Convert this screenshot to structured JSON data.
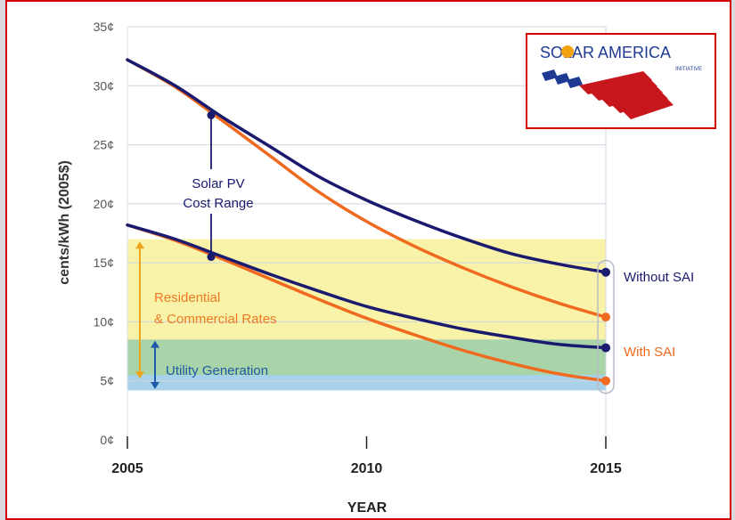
{
  "chart_data": {
    "type": "line",
    "xlabel": "YEAR",
    "ylabel": "cents/kWh (2005$)",
    "xlim": [
      2005,
      2015
    ],
    "ylim": [
      0,
      35
    ],
    "x_ticks": [
      "2005",
      "2010",
      "2015"
    ],
    "y_ticks": [
      "0¢",
      "5¢",
      "10¢",
      "15¢",
      "20¢",
      "25¢",
      "30¢",
      "35¢"
    ],
    "grid": true,
    "series": [
      {
        "name": "Without SAI",
        "color": "#1a1a6e",
        "role": "upper",
        "x": [
          2005,
          2006,
          2007,
          2008,
          2009,
          2010,
          2011,
          2012,
          2013,
          2014,
          2015
        ],
        "values": [
          32.2,
          30.0,
          27.3,
          24.8,
          22.3,
          20.3,
          18.6,
          17.1,
          15.8,
          14.9,
          14.2
        ]
      },
      {
        "name": "With SAI",
        "color": "#ef6a1e",
        "role": "upper",
        "x": [
          2005,
          2006,
          2007,
          2008,
          2009,
          2010,
          2011,
          2012,
          2013,
          2014,
          2015
        ],
        "values": [
          32.2,
          29.9,
          27.0,
          24.0,
          21.0,
          18.5,
          16.4,
          14.6,
          13.0,
          11.6,
          10.4
        ]
      },
      {
        "name": "Without SAI",
        "color": "#1a1a6e",
        "role": "lower",
        "x": [
          2005,
          2006,
          2007,
          2008,
          2009,
          2010,
          2011,
          2012,
          2013,
          2014,
          2015
        ],
        "values": [
          18.2,
          17.0,
          15.5,
          14.0,
          12.6,
          11.3,
          10.3,
          9.4,
          8.7,
          8.1,
          7.8
        ]
      },
      {
        "name": "With SAI",
        "color": "#ef6a1e",
        "role": "lower",
        "x": [
          2005,
          2006,
          2007,
          2008,
          2009,
          2010,
          2011,
          2012,
          2013,
          2014,
          2015
        ],
        "values": [
          18.2,
          16.9,
          15.3,
          13.6,
          11.9,
          10.3,
          8.9,
          7.6,
          6.5,
          5.6,
          5.0
        ]
      }
    ],
    "bands": [
      {
        "label": "Residential & Commercial Rates",
        "from": 8.5,
        "to": 17.0,
        "color": "#f8f3a8"
      },
      {
        "label": "Utility Generation",
        "from": 4.2,
        "to": 8.5,
        "color": "#a9d3a8"
      },
      {
        "label": "",
        "from": 4.2,
        "to": 5.5,
        "color": "#a7d2ea"
      }
    ],
    "annotations": {
      "pv_range_line1": "Solar PV",
      "pv_range_line2": "Cost Range",
      "pv_range_year": 2006.75,
      "pv_range_from": 15.5,
      "pv_range_to": 27.5,
      "residential_line1": "Residential",
      "residential_line2": "& Commercial Rates",
      "utility": "Utility Generation",
      "without_sai": "Without SAI",
      "with_sai": "With SAI"
    }
  },
  "logo": {
    "title": "SOLAR AMERICA",
    "subtitle": "INITIATIVE",
    "colors": {
      "navy": "#1f3a93",
      "red": "#c8161d",
      "sun": "#f2a30f"
    }
  }
}
